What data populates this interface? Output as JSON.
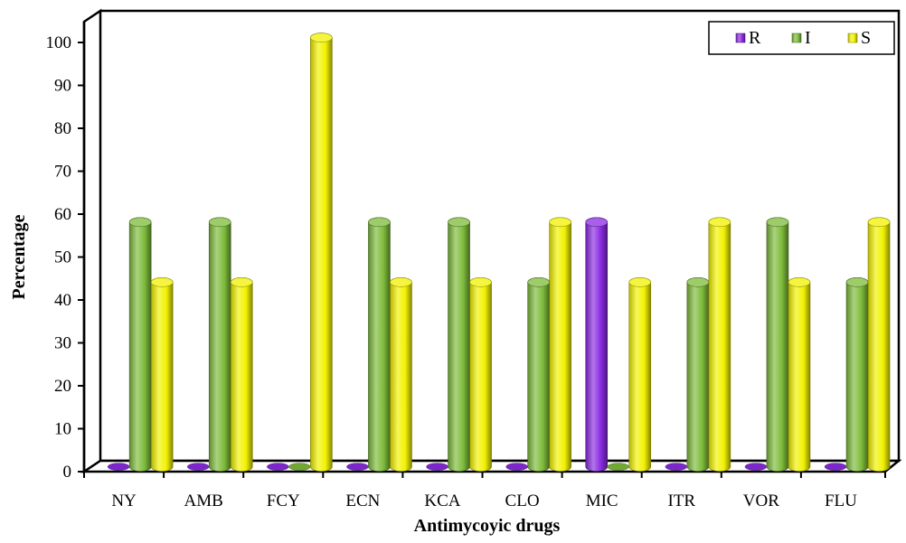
{
  "chart_data": {
    "type": "bar",
    "title": "",
    "xlabel": "Antimycoyic drugs",
    "ylabel": "Percentage",
    "ylim": [
      0,
      100
    ],
    "yticks": [
      0,
      10,
      20,
      30,
      40,
      50,
      60,
      70,
      80,
      90,
      100
    ],
    "categories": [
      "NY",
      "AMB",
      "FCY",
      "ECN",
      "KCA",
      "CLO",
      "MIC",
      "ITR",
      "VOR",
      "FLU"
    ],
    "series": [
      {
        "name": "R",
        "color": "#8a2be2",
        "values": [
          0,
          0,
          0,
          0,
          0,
          0,
          57,
          0,
          0,
          0
        ]
      },
      {
        "name": "I",
        "color": "#7dbb3a",
        "values": [
          57,
          57,
          0,
          57,
          57,
          43,
          0,
          43,
          57,
          43
        ]
      },
      {
        "name": "S",
        "color": "#f2f200",
        "values": [
          43,
          43,
          100,
          43,
          43,
          57,
          43,
          57,
          43,
          57
        ]
      }
    ],
    "grid": false,
    "legend_position": "top-right",
    "style": "3d-cylinder"
  }
}
